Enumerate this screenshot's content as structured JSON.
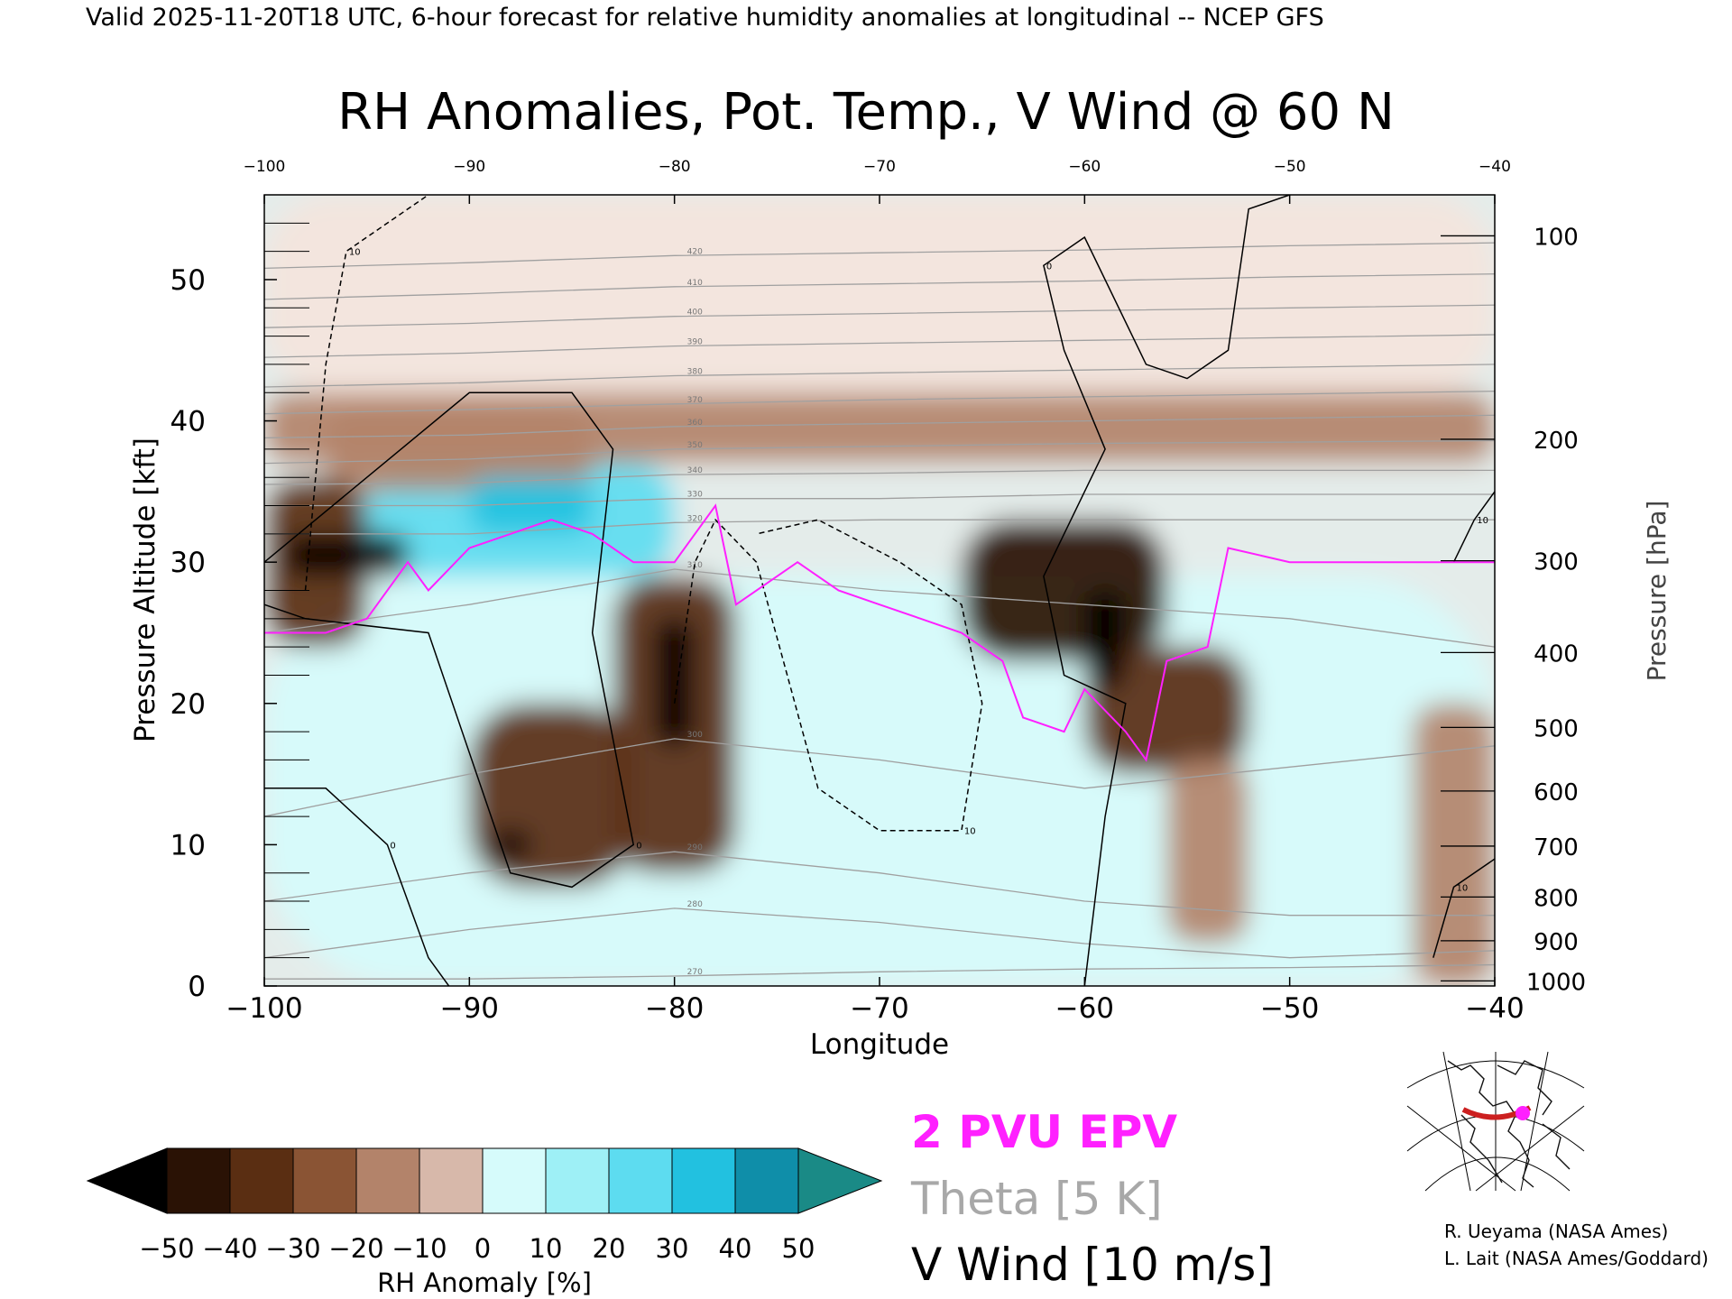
{
  "header": {
    "valid_line": "Valid 2025-11-20T18 UTC, 6-hour forecast for relative humidity anomalies at longitudinal -- NCEP GFS",
    "title": "RH Anomalies, Pot. Temp., V Wind @ 60 N"
  },
  "chart_data": {
    "type": "heatmap",
    "title": "RH Anomalies, Pot. Temp., V Wind @ 60 N",
    "xlabel": "Longitude",
    "ylabel": "Pressure Altitude [kft]",
    "y2label": "Pressure [hPa]",
    "xlim": [
      -100,
      -40
    ],
    "ylim": [
      0,
      56
    ],
    "x_ticks": [
      "-100",
      "-90",
      "-80",
      "-70",
      "-60",
      "-50",
      "-40"
    ],
    "x_top_ticks": [
      "-100",
      "-90",
      "-80",
      "-70",
      "-60",
      "-50",
      "-40"
    ],
    "y_ticks": [
      "0",
      "10",
      "20",
      "30",
      "40",
      "50"
    ],
    "pressure_ticks": [
      {
        "label": "1000",
        "kft": 0.36
      },
      {
        "label": "900",
        "kft": 3.2
      },
      {
        "label": "800",
        "kft": 6.3
      },
      {
        "label": "700",
        "kft": 9.9
      },
      {
        "label": "600",
        "kft": 13.8
      },
      {
        "label": "500",
        "kft": 18.3
      },
      {
        "label": "400",
        "kft": 23.6
      },
      {
        "label": "300",
        "kft": 30.1
      },
      {
        "label": "200",
        "kft": 38.7
      },
      {
        "label": "100",
        "kft": 53.1
      }
    ],
    "rh_anomaly_features": [
      {
        "x": [
          -100,
          -95
        ],
        "y": [
          24,
          36
        ],
        "anomaly": -35
      },
      {
        "x": [
          -99,
          -93
        ],
        "y": [
          29,
          32
        ],
        "anomaly": -50
      },
      {
        "x": [
          -97,
          -84
        ],
        "y": [
          35,
          41
        ],
        "anomaly": -15
      },
      {
        "x": [
          -100,
          -40
        ],
        "y": [
          37,
          42
        ],
        "anomaly": -12
      },
      {
        "x": [
          -95,
          -80
        ],
        "y": [
          29,
          37
        ],
        "anomaly": 30
      },
      {
        "x": [
          -90,
          -84
        ],
        "y": [
          32,
          36
        ],
        "anomaly": 45
      },
      {
        "x": [
          -90,
          -82
        ],
        "y": [
          7,
          20
        ],
        "anomaly": -35
      },
      {
        "x": [
          -89,
          -87
        ],
        "y": [
          9,
          11
        ],
        "anomaly": -50
      },
      {
        "x": [
          -83,
          -77
        ],
        "y": [
          8,
          29
        ],
        "anomaly": -40
      },
      {
        "x": [
          -81,
          -79
        ],
        "y": [
          17,
          26
        ],
        "anomaly": -50
      },
      {
        "x": [
          -66,
          -56
        ],
        "y": [
          23,
          33
        ],
        "anomaly": -42
      },
      {
        "x": [
          -60,
          -58
        ],
        "y": [
          21,
          28
        ],
        "anomaly": -50
      },
      {
        "x": [
          -60,
          -52
        ],
        "y": [
          15,
          24
        ],
        "anomaly": -35
      },
      {
        "x": [
          -56,
          -52
        ],
        "y": [
          3,
          16
        ],
        "anomaly": -20
      },
      {
        "x": [
          -44,
          -40
        ],
        "y": [
          0,
          20
        ],
        "anomaly": -20
      },
      {
        "x": [
          -100,
          -40
        ],
        "y": [
          0,
          29
        ],
        "anomaly": 15
      },
      {
        "x": [
          -100,
          -40
        ],
        "y": [
          42,
          56
        ],
        "anomaly": 0
      }
    ],
    "theta_contours_K": [
      "270",
      "280",
      "290",
      "300",
      "310",
      "320",
      "330",
      "340",
      "350",
      "360",
      "370",
      "380",
      "390",
      "400",
      "410",
      "420"
    ],
    "theta_curves": [
      {
        "label": "270",
        "points": [
          [
            -100,
            0.5
          ],
          [
            -90,
            0.5
          ],
          [
            -80,
            0.7
          ],
          [
            -70,
            1.0
          ],
          [
            -60,
            1.2
          ],
          [
            -50,
            1.3
          ],
          [
            -40,
            1.5
          ]
        ]
      },
      {
        "label": "280",
        "points": [
          [
            -100,
            2.0
          ],
          [
            -90,
            4.0
          ],
          [
            -80,
            5.5
          ],
          [
            -70,
            4.5
          ],
          [
            -60,
            3.0
          ],
          [
            -50,
            2.0
          ],
          [
            -40,
            2.5
          ]
        ]
      },
      {
        "label": "290",
        "points": [
          [
            -100,
            6.0
          ],
          [
            -90,
            8.0
          ],
          [
            -80,
            9.5
          ],
          [
            -70,
            8.0
          ],
          [
            -60,
            6.0
          ],
          [
            -50,
            5.0
          ],
          [
            -40,
            5.0
          ]
        ]
      },
      {
        "label": "300",
        "points": [
          [
            -100,
            12.0
          ],
          [
            -90,
            15.0
          ],
          [
            -80,
            17.5
          ],
          [
            -70,
            16.0
          ],
          [
            -60,
            14.0
          ],
          [
            -50,
            15.5
          ],
          [
            -40,
            17.0
          ]
        ]
      },
      {
        "label": "310",
        "points": [
          [
            -100,
            25.0
          ],
          [
            -90,
            27.0
          ],
          [
            -80,
            29.5
          ],
          [
            -70,
            28.0
          ],
          [
            -60,
            27.0
          ],
          [
            -50,
            26.0
          ],
          [
            -40,
            24.0
          ]
        ]
      },
      {
        "label": "320",
        "points": [
          [
            -100,
            32.0
          ],
          [
            -90,
            32.0
          ],
          [
            -80,
            32.8
          ],
          [
            -70,
            33.0
          ],
          [
            -60,
            33.0
          ],
          [
            -50,
            33.0
          ],
          [
            -40,
            33.0
          ]
        ]
      },
      {
        "label": "330",
        "points": [
          [
            -100,
            34.0
          ],
          [
            -90,
            34.0
          ],
          [
            -80,
            34.5
          ],
          [
            -70,
            34.5
          ],
          [
            -60,
            34.8
          ],
          [
            -50,
            34.8
          ],
          [
            -40,
            34.8
          ]
        ]
      },
      {
        "label": "340",
        "points": [
          [
            -100,
            35.5
          ],
          [
            -90,
            35.6
          ],
          [
            -80,
            36.2
          ],
          [
            -70,
            36.3
          ],
          [
            -60,
            36.5
          ],
          [
            -50,
            36.5
          ],
          [
            -40,
            36.5
          ]
        ]
      },
      {
        "label": "350",
        "points": [
          [
            -100,
            37.0
          ],
          [
            -90,
            37.3
          ],
          [
            -80,
            38.0
          ],
          [
            -70,
            38.2
          ],
          [
            -60,
            38.4
          ],
          [
            -50,
            38.5
          ],
          [
            -40,
            38.6
          ]
        ]
      },
      {
        "label": "360",
        "points": [
          [
            -100,
            38.8
          ],
          [
            -90,
            39.0
          ],
          [
            -80,
            39.6
          ],
          [
            -70,
            39.8
          ],
          [
            -60,
            40.0
          ],
          [
            -50,
            40.2
          ],
          [
            -40,
            40.4
          ]
        ]
      },
      {
        "label": "370",
        "points": [
          [
            -100,
            40.5
          ],
          [
            -90,
            40.8
          ],
          [
            -80,
            41.2
          ],
          [
            -70,
            41.5
          ],
          [
            -60,
            41.7
          ],
          [
            -50,
            41.9
          ],
          [
            -40,
            42.1
          ]
        ]
      },
      {
        "label": "380",
        "points": [
          [
            -100,
            42.4
          ],
          [
            -90,
            42.7
          ],
          [
            -80,
            43.2
          ],
          [
            -70,
            43.4
          ],
          [
            -60,
            43.6
          ],
          [
            -50,
            43.8
          ],
          [
            -40,
            44.0
          ]
        ]
      },
      {
        "label": "390",
        "points": [
          [
            -100,
            44.5
          ],
          [
            -90,
            44.8
          ],
          [
            -80,
            45.3
          ],
          [
            -70,
            45.5
          ],
          [
            -60,
            45.7
          ],
          [
            -50,
            45.9
          ],
          [
            -40,
            46.1
          ]
        ]
      },
      {
        "label": "400",
        "points": [
          [
            -100,
            46.6
          ],
          [
            -90,
            46.9
          ],
          [
            -80,
            47.4
          ],
          [
            -70,
            47.6
          ],
          [
            -60,
            47.8
          ],
          [
            -50,
            48.0
          ],
          [
            -40,
            48.2
          ]
        ]
      },
      {
        "label": "410",
        "points": [
          [
            -100,
            48.6
          ],
          [
            -90,
            49.0
          ],
          [
            -80,
            49.5
          ],
          [
            -70,
            49.7
          ],
          [
            -60,
            49.9
          ],
          [
            -50,
            50.2
          ],
          [
            -40,
            50.4
          ]
        ]
      },
      {
        "label": "420",
        "points": [
          [
            -100,
            50.8
          ],
          [
            -90,
            51.2
          ],
          [
            -80,
            51.7
          ],
          [
            -70,
            51.9
          ],
          [
            -60,
            52.1
          ],
          [
            -50,
            52.4
          ],
          [
            -40,
            52.6
          ]
        ]
      }
    ],
    "wind_contours": [
      {
        "label": "10",
        "style": "dashed",
        "points": [
          [
            -98,
            28
          ],
          [
            -97,
            44
          ],
          [
            -96,
            52
          ],
          [
            -92,
            56
          ]
        ]
      },
      {
        "label": "0",
        "style": "solid",
        "points": [
          [
            -100,
            30
          ],
          [
            -95,
            36
          ],
          [
            -90,
            42
          ],
          [
            -85,
            42
          ],
          [
            -83,
            38
          ],
          [
            -84,
            25
          ],
          [
            -82,
            10
          ],
          [
            -85,
            7
          ],
          [
            -88,
            8
          ],
          [
            -92,
            25
          ],
          [
            -98,
            26
          ],
          [
            -100,
            27
          ]
        ]
      },
      {
        "label": "0",
        "style": "solid",
        "points": [
          [
            -100,
            14
          ],
          [
            -97,
            14
          ],
          [
            -94,
            10
          ],
          [
            -92,
            2
          ],
          [
            -91,
            0
          ]
        ]
      },
      {
        "label": "10",
        "style": "dashed",
        "points": [
          [
            -80,
            20
          ],
          [
            -79,
            30
          ],
          [
            -78,
            33
          ],
          [
            -76,
            30
          ],
          [
            -73,
            14
          ],
          [
            -70,
            11
          ],
          [
            -66,
            11
          ],
          [
            -65,
            20
          ],
          [
            -66,
            27
          ],
          [
            -69,
            30
          ],
          [
            -73,
            33
          ],
          [
            -76,
            32
          ]
        ]
      },
      {
        "label": "0",
        "style": "solid",
        "points": [
          [
            -60,
            0
          ],
          [
            -59,
            12
          ],
          [
            -58,
            20
          ],
          [
            -61,
            22
          ],
          [
            -62,
            29
          ],
          [
            -59,
            38
          ],
          [
            -61,
            45
          ],
          [
            -62,
            51
          ],
          [
            -60,
            53
          ],
          [
            -57,
            44
          ],
          [
            -55,
            43
          ],
          [
            -53,
            45
          ],
          [
            -52,
            55
          ],
          [
            -50,
            56
          ]
        ]
      },
      {
        "label": "10",
        "style": "solid",
        "points": [
          [
            -42,
            30
          ],
          [
            -41,
            33
          ],
          [
            -40,
            35
          ]
        ]
      },
      {
        "label": "10",
        "style": "solid",
        "points": [
          [
            -43,
            2
          ],
          [
            -42,
            7
          ],
          [
            -40,
            9
          ]
        ]
      }
    ],
    "pvu2_line": {
      "name": "2 PVU EPV",
      "color": "#ff20ff",
      "points": [
        [
          -100,
          25
        ],
        [
          -97,
          25
        ],
        [
          -95,
          26
        ],
        [
          -93,
          30
        ],
        [
          -92,
          28
        ],
        [
          -90,
          31
        ],
        [
          -88,
          32
        ],
        [
          -86,
          33
        ],
        [
          -84,
          32
        ],
        [
          -82,
          30
        ],
        [
          -80,
          30
        ],
        [
          -78,
          34
        ],
        [
          -77,
          27
        ],
        [
          -74,
          30
        ],
        [
          -72,
          28
        ],
        [
          -70,
          27
        ],
        [
          -68,
          26
        ],
        [
          -66,
          25
        ],
        [
          -64,
          23
        ],
        [
          -63,
          19
        ],
        [
          -61,
          18
        ],
        [
          -60,
          21
        ],
        [
          -58,
          18
        ],
        [
          -57,
          16
        ],
        [
          -56,
          23
        ],
        [
          -54,
          24
        ],
        [
          -53,
          31
        ],
        [
          -50,
          30
        ],
        [
          -45,
          30
        ],
        [
          -40,
          30
        ]
      ]
    }
  },
  "colorbar": {
    "label": "RH Anomaly [%]",
    "ticks": [
      "-50",
      "-40",
      "-30",
      "-20",
      "-10",
      "0",
      "10",
      "20",
      "30",
      "40",
      "50"
    ],
    "bins": [
      -45,
      -35,
      -25,
      -15,
      -5,
      5,
      15,
      25,
      35,
      45
    ],
    "colors": [
      "#2a1205",
      "#5a2e12",
      "#8a5434",
      "#b3836a",
      "#d7b8aa",
      "#f4e4dc",
      "#d6fbfb",
      "#9ef0f6",
      "#5ddcf0",
      "#22c1e0",
      "#0f8ea9",
      "#0a8e87"
    ],
    "under_color": "#000000",
    "over_color": "#1a8a86"
  },
  "legend": {
    "pvu": "2 PVU EPV",
    "theta": "Theta [5 K]",
    "vwind": "V Wind [10 m/s]"
  },
  "credits": {
    "line1": "R. Ueyama (NASA Ames)",
    "line2": "L. Lait (NASA Ames/Goddard)"
  },
  "colors": {
    "pvu_magenta": "#ff20ff",
    "theta_gray": "#a0a0a0",
    "wind_black": "#000000"
  }
}
